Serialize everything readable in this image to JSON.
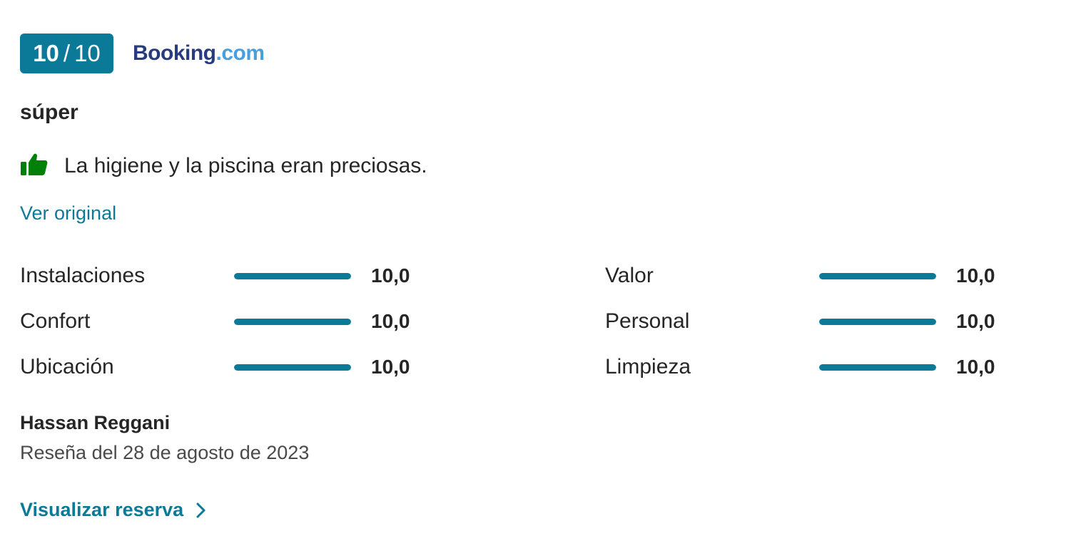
{
  "score": {
    "value": "10",
    "separator": "/",
    "max": "10"
  },
  "brand": {
    "part1": "Booking",
    "part2": ".com"
  },
  "review": {
    "headline": "súper",
    "positive_text": "La higiene y la piscina eran preciosas.",
    "see_original_label": "Ver original"
  },
  "ratings": {
    "left": [
      {
        "label": "Instalaciones",
        "value": "10,0",
        "fraction": 1.0
      },
      {
        "label": "Confort",
        "value": "10,0",
        "fraction": 1.0
      },
      {
        "label": "Ubicación",
        "value": "10,0",
        "fraction": 1.0
      }
    ],
    "right": [
      {
        "label": "Valor",
        "value": "10,0",
        "fraction": 1.0
      },
      {
        "label": "Personal",
        "value": "10,0",
        "fraction": 1.0
      },
      {
        "label": "Limpieza",
        "value": "10,0",
        "fraction": 1.0
      }
    ]
  },
  "author": {
    "name": "Hassan Reggani",
    "date_text": "Reseña del 28 de agosto de 2023"
  },
  "actions": {
    "view_booking_label": "Visualizar reserva"
  },
  "colors": {
    "accent": "#0b7a99",
    "thumb": "#008009",
    "brand_dark": "#273b7d",
    "brand_light": "#499fdd"
  },
  "icons": {
    "thumb": "thumbs-up-icon",
    "chevron": "chevron-right-icon"
  }
}
